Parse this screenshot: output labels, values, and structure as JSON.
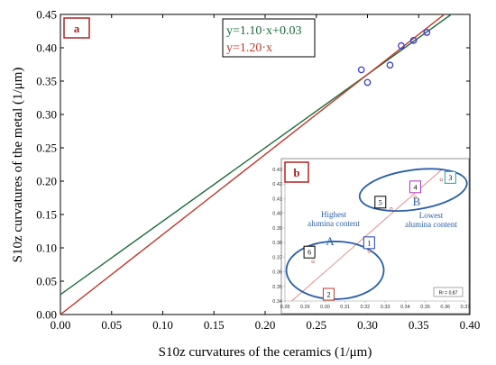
{
  "chart_data": {
    "type": "scatter",
    "panel_label": "a",
    "xlabel": "S10z curvatures of the ceramics (1/μm)",
    "ylabel": "S10z curvatures of the metal (1/μm)",
    "xlim": [
      0.0,
      0.4
    ],
    "ylim": [
      0.0,
      0.45
    ],
    "x_ticks": [
      "0.00",
      "0.05",
      "0.10",
      "0.15",
      "0.20",
      "0.25",
      "0.30",
      "0.35",
      "0.40"
    ],
    "y_ticks": [
      "0.00",
      "0.05",
      "0.10",
      "0.15",
      "0.20",
      "0.25",
      "0.30",
      "0.35",
      "0.40",
      "0.45"
    ],
    "points": [
      {
        "x": 0.294,
        "y": 0.367
      },
      {
        "x": 0.3,
        "y": 0.348
      },
      {
        "x": 0.322,
        "y": 0.374
      },
      {
        "x": 0.333,
        "y": 0.403
      },
      {
        "x": 0.345,
        "y": 0.411
      },
      {
        "x": 0.358,
        "y": 0.423
      }
    ],
    "fits": [
      {
        "label": "y=1.10·x+0.03",
        "slope": 1.1,
        "intercept": 0.03,
        "color": "#1a6b3a"
      },
      {
        "label": "y=1.20·x",
        "slope": 1.2,
        "intercept": 0.0,
        "color": "#c0392b"
      }
    ],
    "marker_color": "#3a3ad6",
    "inset": {
      "panel_label": "b",
      "xlim": [
        0.28,
        0.37
      ],
      "ylim": [
        0.34,
        0.43
      ],
      "x_ticks": [
        "0.28",
        "0.29",
        "0.30",
        "0.31",
        "0.32",
        "0.33",
        "0.34",
        "0.35",
        "0.36",
        "0.37"
      ],
      "y_ticks": [
        "0.34",
        "0.35",
        "0.36",
        "0.37",
        "0.38",
        "0.39",
        "0.40",
        "0.41",
        "0.42",
        "0.43"
      ],
      "points": [
        {
          "id": "1",
          "x": 0.322,
          "y": 0.374,
          "box_color": "#1a3fb5"
        },
        {
          "id": "2",
          "x": 0.3,
          "y": 0.348,
          "box_color": "#c0392b"
        },
        {
          "id": "3",
          "x": 0.358,
          "y": 0.423,
          "box_color": "#1aa58a"
        },
        {
          "id": "4",
          "x": 0.345,
          "y": 0.411,
          "box_color": "#b030c0"
        },
        {
          "id": "5",
          "x": 0.333,
          "y": 0.403,
          "box_color": "#000000"
        },
        {
          "id": "6",
          "x": 0.294,
          "y": 0.367,
          "box_color": "#000000"
        }
      ],
      "group_a_label": "A",
      "group_b_label": "B",
      "highest_text": [
        "Highest",
        "alumina content"
      ],
      "lowest_text": [
        "Lowest",
        "alumina content"
      ],
      "r_squared": "R² = 0.87",
      "ellipse_color": "#2a5fa8",
      "fit_color": "#e08080"
    }
  }
}
